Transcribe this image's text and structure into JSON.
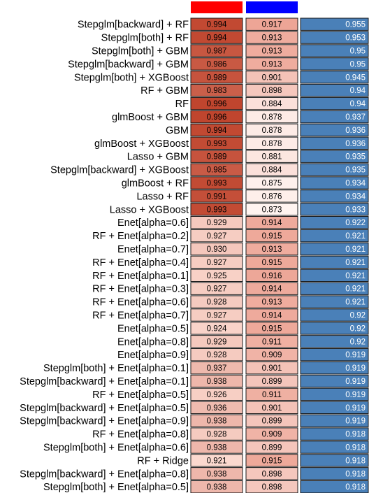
{
  "colors": {
    "header_col1": "#ff0000",
    "header_col2": "#0000ff",
    "col1_low": "#fbd9cf",
    "col1_high": "#c0452e",
    "col2_low": "#fff4f0",
    "col2_high": "#eda596",
    "col3_fill": "#4a80b8",
    "border": "#1a1a1a"
  },
  "chart_data": {
    "type": "heatmap",
    "columns": [
      "",
      "",
      ""
    ],
    "rows": [
      {
        "label": "Stepglm[backward] + RF",
        "v1": "0.994",
        "v2": "0.917",
        "v3": "0.955"
      },
      {
        "label": "Stepglm[both] + RF",
        "v1": "0.994",
        "v2": "0.913",
        "v3": "0.953"
      },
      {
        "label": "Stepglm[both] + GBM",
        "v1": "0.987",
        "v2": "0.913",
        "v3": "0.95"
      },
      {
        "label": "Stepglm[backward] + GBM",
        "v1": "0.986",
        "v2": "0.913",
        "v3": "0.95"
      },
      {
        "label": "Stepglm[both] + XGBoost",
        "v1": "0.989",
        "v2": "0.901",
        "v3": "0.945"
      },
      {
        "label": "RF + GBM",
        "v1": "0.983",
        "v2": "0.898",
        "v3": "0.94"
      },
      {
        "label": "RF",
        "v1": "0.996",
        "v2": "0.884",
        "v3": "0.94"
      },
      {
        "label": "glmBoost + GBM",
        "v1": "0.996",
        "v2": "0.878",
        "v3": "0.937"
      },
      {
        "label": "GBM",
        "v1": "0.994",
        "v2": "0.878",
        "v3": "0.936"
      },
      {
        "label": "glmBoost + XGBoost",
        "v1": "0.993",
        "v2": "0.878",
        "v3": "0.936"
      },
      {
        "label": "Lasso + GBM",
        "v1": "0.989",
        "v2": "0.881",
        "v3": "0.935"
      },
      {
        "label": "Stepglm[backward] + XGBoost",
        "v1": "0.985",
        "v2": "0.884",
        "v3": "0.935"
      },
      {
        "label": "glmBoost + RF",
        "v1": "0.993",
        "v2": "0.875",
        "v3": "0.934"
      },
      {
        "label": "Lasso + RF",
        "v1": "0.991",
        "v2": "0.876",
        "v3": "0.934"
      },
      {
        "label": "Lasso + XGBoost",
        "v1": "0.993",
        "v2": "0.873",
        "v3": "0.933"
      },
      {
        "label": "Enet[alpha=0.6]",
        "v1": "0.929",
        "v2": "0.914",
        "v3": "0.922"
      },
      {
        "label": "RF + Enet[alpha=0.2]",
        "v1": "0.927",
        "v2": "0.915",
        "v3": "0.921"
      },
      {
        "label": "Enet[alpha=0.7]",
        "v1": "0.930",
        "v2": "0.913",
        "v3": "0.921"
      },
      {
        "label": "RF + Enet[alpha=0.4]",
        "v1": "0.927",
        "v2": "0.915",
        "v3": "0.921"
      },
      {
        "label": "RF + Enet[alpha=0.1]",
        "v1": "0.925",
        "v2": "0.916",
        "v3": "0.921"
      },
      {
        "label": "RF + Enet[alpha=0.3]",
        "v1": "0.927",
        "v2": "0.914",
        "v3": "0.921"
      },
      {
        "label": "RF + Enet[alpha=0.6]",
        "v1": "0.928",
        "v2": "0.913",
        "v3": "0.921"
      },
      {
        "label": "RF + Enet[alpha=0.7]",
        "v1": "0.927",
        "v2": "0.914",
        "v3": "0.92"
      },
      {
        "label": "Enet[alpha=0.5]",
        "v1": "0.924",
        "v2": "0.915",
        "v3": "0.92"
      },
      {
        "label": "Enet[alpha=0.8]",
        "v1": "0.929",
        "v2": "0.911",
        "v3": "0.92"
      },
      {
        "label": "Enet[alpha=0.9]",
        "v1": "0.928",
        "v2": "0.909",
        "v3": "0.919"
      },
      {
        "label": "Stepglm[both] + Enet[alpha=0.1]",
        "v1": "0.937",
        "v2": "0.901",
        "v3": "0.919"
      },
      {
        "label": "Stepglm[backward] + Enet[alpha=0.1]",
        "v1": "0.938",
        "v2": "0.899",
        "v3": "0.919"
      },
      {
        "label": "RF + Enet[alpha=0.5]",
        "v1": "0.926",
        "v2": "0.911",
        "v3": "0.919"
      },
      {
        "label": "Stepglm[backward] + Enet[alpha=0.5]",
        "v1": "0.936",
        "v2": "0.901",
        "v3": "0.919"
      },
      {
        "label": "Stepglm[backward] + Enet[alpha=0.9]",
        "v1": "0.938",
        "v2": "0.899",
        "v3": "0.919"
      },
      {
        "label": "RF + Enet[alpha=0.8]",
        "v1": "0.928",
        "v2": "0.909",
        "v3": "0.918"
      },
      {
        "label": "Stepglm[both] + Enet[alpha=0.6]",
        "v1": "0.938",
        "v2": "0.899",
        "v3": "0.918"
      },
      {
        "label": "RF + Ridge",
        "v1": "0.921",
        "v2": "0.915",
        "v3": "0.918"
      },
      {
        "label": "Stepglm[backward] + Enet[alpha=0.8]",
        "v1": "0.938",
        "v2": "0.898",
        "v3": "0.918"
      },
      {
        "label": "Stepglm[both] + Enet[alpha=0.5]",
        "v1": "0.938",
        "v2": "0.898",
        "v3": "0.918"
      }
    ]
  }
}
